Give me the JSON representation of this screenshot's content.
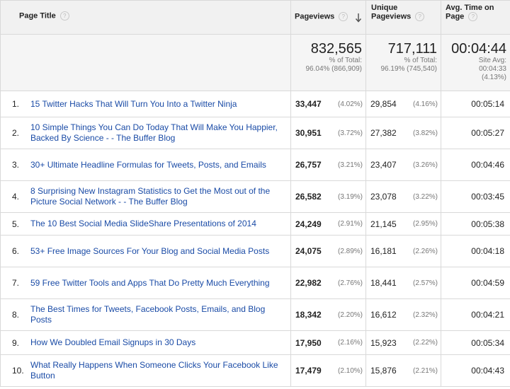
{
  "headers": {
    "page_title": "Page Title",
    "pageviews": "Pageviews",
    "unique_pageviews": [
      "Unique",
      "Pageviews"
    ],
    "avg_time": [
      "Avg. Time on",
      "Page"
    ],
    "help_glyph": "?"
  },
  "summary": {
    "pageviews": {
      "value": "832,565",
      "line1": "% of Total:",
      "line2": "96.04% (866,909)"
    },
    "unique": {
      "value": "717,111",
      "line1": "% of Total:",
      "line2": "96.19% (745,540)"
    },
    "time": {
      "value": "00:04:44",
      "line1": "Site Avg:",
      "line2": "00:04:33",
      "line3": "(4.13%)"
    }
  },
  "rows": [
    {
      "rank": "1.",
      "title": "15 Twitter Hacks That Will Turn You Into a Twitter Ninja",
      "pv": "33,447",
      "pv_pct": "(4.02%)",
      "upv": "29,854",
      "upv_pct": "(4.16%)",
      "time": "00:05:14"
    },
    {
      "rank": "2.",
      "title": "10 Simple Things You Can Do Today That Will Make You Happier, Backed By Science - - The Buffer Blog",
      "pv": "30,951",
      "pv_pct": "(3.72%)",
      "upv": "27,382",
      "upv_pct": "(3.82%)",
      "time": "00:05:27"
    },
    {
      "rank": "3.",
      "title": "30+ Ultimate Headline Formulas for Tweets, Posts, and Emails",
      "pv": "26,757",
      "pv_pct": "(3.21%)",
      "upv": "23,407",
      "upv_pct": "(3.26%)",
      "time": "00:04:46"
    },
    {
      "rank": "4.",
      "title": "8 Surprising New Instagram Statistics to Get the Most out of the Picture Social Network - - The Buffer Blog",
      "pv": "26,582",
      "pv_pct": "(3.19%)",
      "upv": "23,078",
      "upv_pct": "(3.22%)",
      "time": "00:03:45"
    },
    {
      "rank": "5.",
      "title": "The 10 Best Social Media SlideShare Presentations of 2014",
      "pv": "24,249",
      "pv_pct": "(2.91%)",
      "upv": "21,145",
      "upv_pct": "(2.95%)",
      "time": "00:05:38"
    },
    {
      "rank": "6.",
      "title": "53+ Free Image Sources For Your Blog and Social Media Posts",
      "pv": "24,075",
      "pv_pct": "(2.89%)",
      "upv": "16,181",
      "upv_pct": "(2.26%)",
      "time": "00:04:18"
    },
    {
      "rank": "7.",
      "title": "59 Free Twitter Tools and Apps That Do Pretty Much Everything",
      "pv": "22,982",
      "pv_pct": "(2.76%)",
      "upv": "18,441",
      "upv_pct": "(2.57%)",
      "time": "00:04:59"
    },
    {
      "rank": "8.",
      "title": "The Best Times for Tweets, Facebook Posts, Emails, and Blog Posts",
      "pv": "18,342",
      "pv_pct": "(2.20%)",
      "upv": "16,612",
      "upv_pct": "(2.32%)",
      "time": "00:04:21"
    },
    {
      "rank": "9.",
      "title": "How We Doubled Email Signups in 30 Days",
      "pv": "17,950",
      "pv_pct": "(2.16%)",
      "upv": "15,923",
      "upv_pct": "(2.22%)",
      "time": "00:05:34"
    },
    {
      "rank": "10.",
      "title": "What Really Happens When Someone Clicks Your Facebook Like Button",
      "pv": "17,479",
      "pv_pct": "(2.10%)",
      "upv": "15,876",
      "upv_pct": "(2.21%)",
      "time": "00:04:43"
    }
  ],
  "colors": {
    "link": "#1a4ba6",
    "header_bg": "#f1f1f1",
    "summary_bg": "#f5f5f5",
    "border": "#d9d9d9"
  },
  "icons": {
    "help": "help-icon",
    "sort": "sort-descending-icon"
  }
}
